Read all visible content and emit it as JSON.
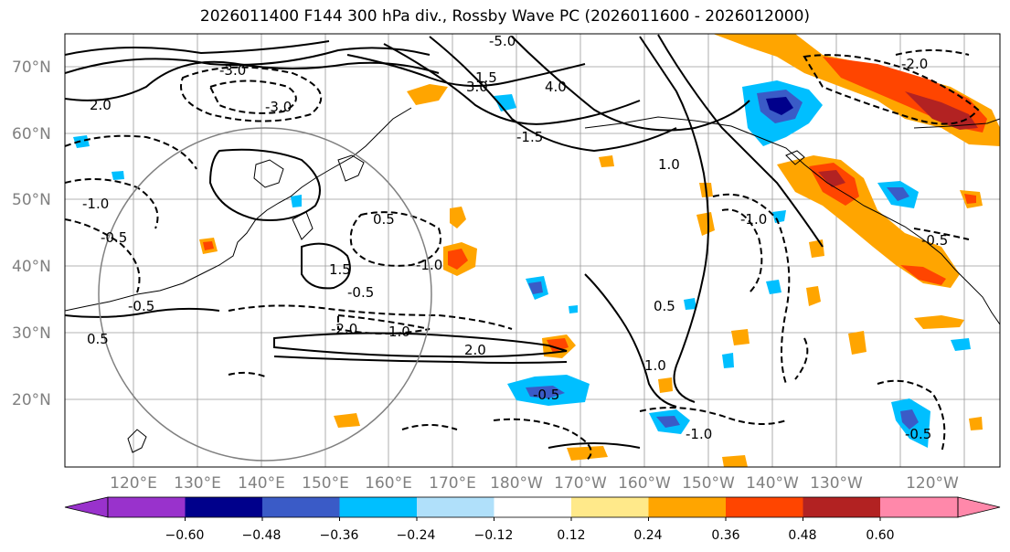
{
  "title": "2026011400 F144 300 hPa div., Rossby Wave PC (2026011600 - 2026012000)",
  "latitude_labels": [
    "70°N",
    "60°N",
    "50°N",
    "40°N",
    "30°N",
    "20°N"
  ],
  "longitude_labels": [
    "120°E",
    "130°E",
    "140°E",
    "150°E",
    "160°E",
    "170°E",
    "180°W",
    "170°W",
    "160°W",
    "150°W",
    "140°W",
    "130°W",
    "120°W"
  ],
  "colorbar": {
    "ticks": [
      "−0.60",
      "−0.48",
      "−0.36",
      "−0.24",
      "−0.12",
      "0.12",
      "0.24",
      "0.36",
      "0.48",
      "0.60"
    ],
    "colors": [
      "#9932cc",
      "#00008b",
      "#3a5bc7",
      "#00bfff",
      "#b0e0fa",
      "#ffffff",
      "#ffe98a",
      "#ffa500",
      "#ff4500",
      "#b22222",
      "#ff88aa"
    ]
  },
  "contour_labels": [
    "-5.0",
    "-3.0",
    "-3.0",
    "-2.0",
    "-2.0",
    "-1.5",
    "-1.0",
    "-1.0",
    "-1.0",
    "-0.5",
    "-0.5",
    "-0.5",
    "-0.5",
    "-0.5",
    "-0.5",
    "0.5",
    "0.5",
    "1.0",
    "1.0",
    "1.5",
    "1.5",
    "2.0",
    "2.0",
    "3.0",
    "4.0",
    "1.0",
    "-1.0",
    "0.5"
  ]
}
